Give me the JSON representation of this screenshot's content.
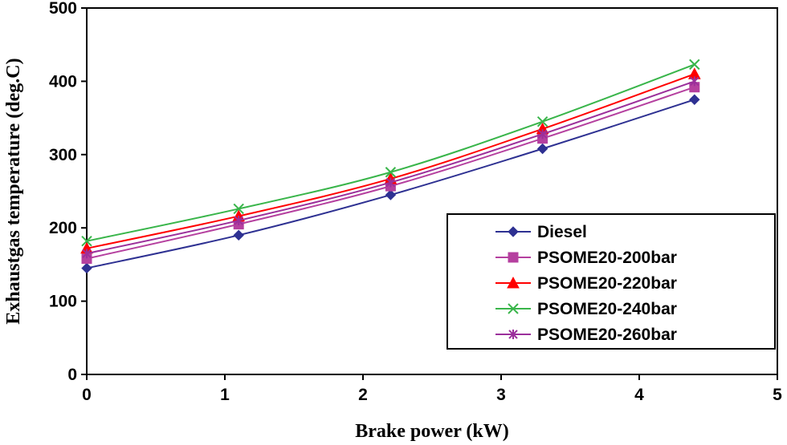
{
  "chart_data": {
    "type": "line",
    "title": "",
    "xlabel": "Brake power (kW)",
    "ylabel": "Exhaustgas temperature (deg.C)",
    "xlim": [
      0,
      5
    ],
    "ylim": [
      0,
      500
    ],
    "xticks": [
      0,
      1,
      2,
      3,
      4,
      5
    ],
    "yticks": [
      0,
      100,
      200,
      300,
      400,
      500
    ],
    "grid": false,
    "legend_position": "right",
    "x": [
      0,
      1.1,
      2.2,
      3.3,
      4.4
    ],
    "series": [
      {
        "name": "Diesel",
        "values": [
          145,
          190,
          245,
          308,
          375
        ],
        "color": "#2e3192",
        "marker": "diamond"
      },
      {
        "name": "PSOME20-200bar",
        "values": [
          158,
          205,
          257,
          322,
          392
        ],
        "color": "#b5409f",
        "marker": "square"
      },
      {
        "name": "PSOME20-220bar",
        "values": [
          172,
          216,
          267,
          335,
          410
        ],
        "color": "#ff0000",
        "marker": "triangle"
      },
      {
        "name": "PSOME20-240bar",
        "values": [
          182,
          226,
          276,
          345,
          423
        ],
        "color": "#39b54a",
        "marker": "x"
      },
      {
        "name": "PSOME20-260bar",
        "values": [
          165,
          210,
          262,
          328,
          400
        ],
        "color": "#9b2f9b",
        "marker": "star"
      }
    ]
  }
}
